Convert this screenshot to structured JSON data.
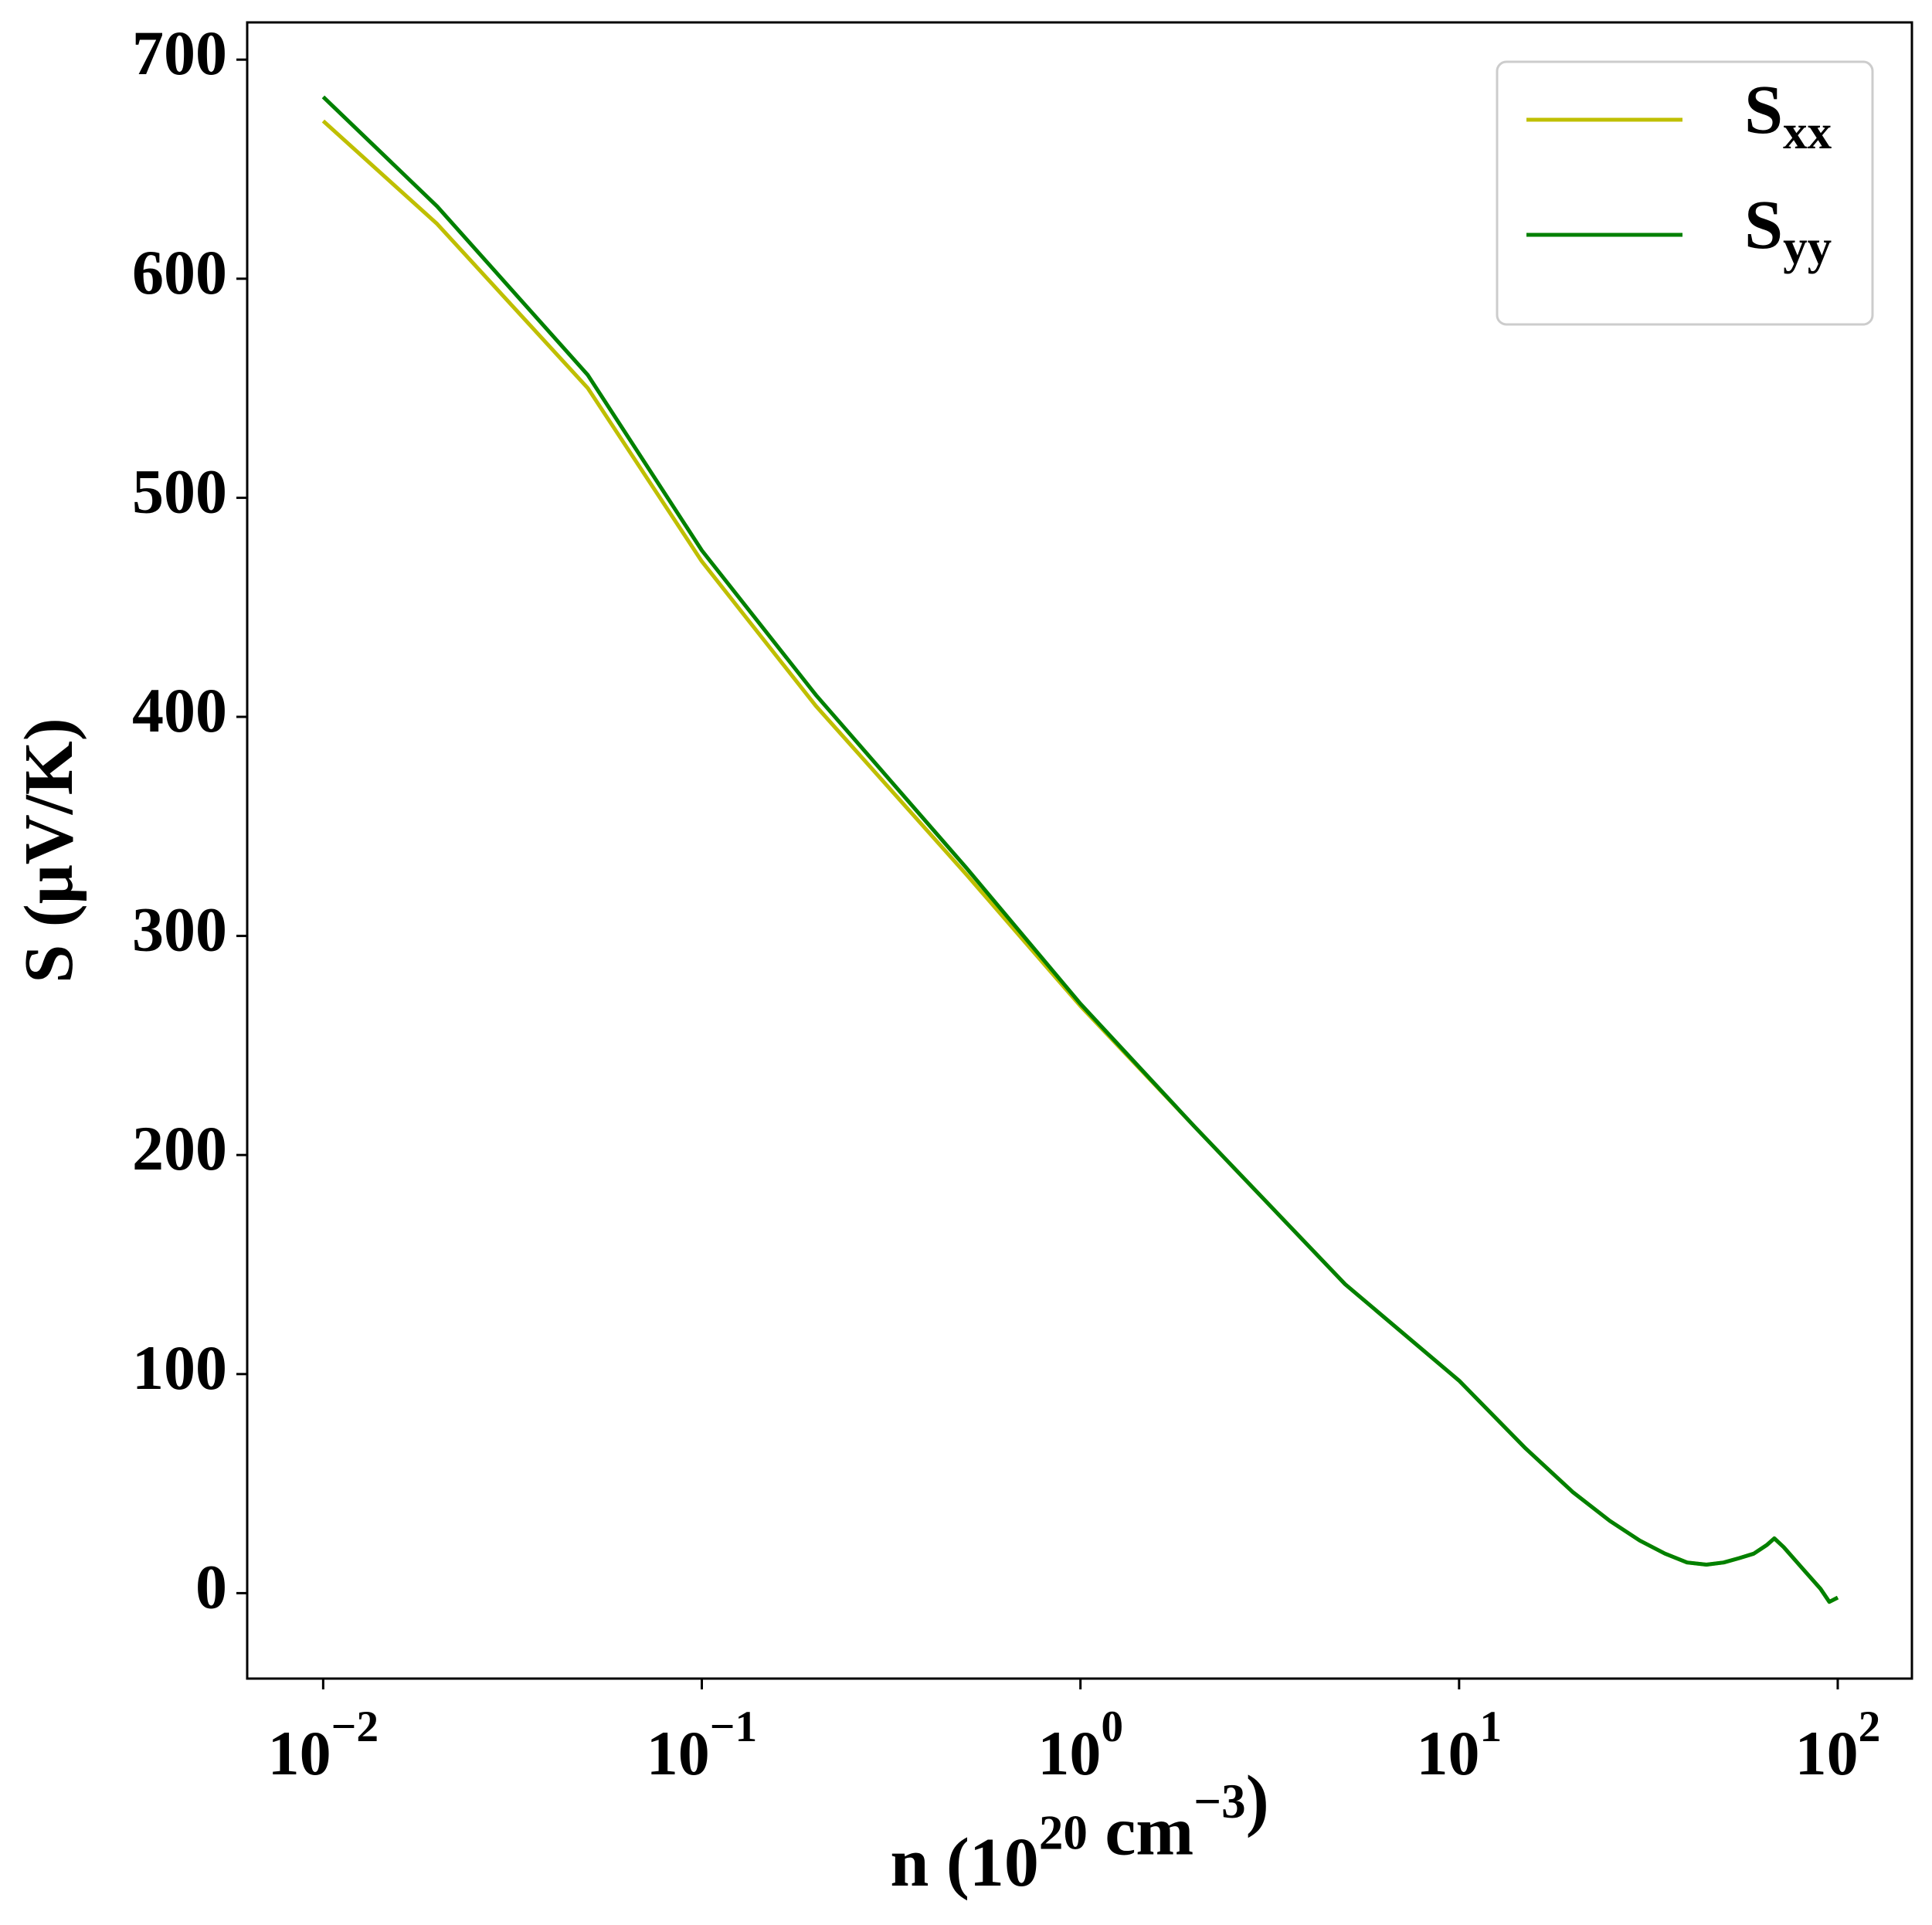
{
  "chart_data": {
    "type": "line",
    "x_label": "n (10^{20} cm^{−3})",
    "y_label": "S (μV/K)",
    "xscale": "log",
    "xlim": [
      0.0063,
      157
    ],
    "ylim": [
      -39,
      717
    ],
    "xticks": [
      {
        "value": 0.01,
        "label": "10^{−2}"
      },
      {
        "value": 0.1,
        "label": "10^{−1}"
      },
      {
        "value": 1,
        "label": "10^{0}"
      },
      {
        "value": 10,
        "label": "10^{1}"
      },
      {
        "value": 100,
        "label": "10^{2}"
      }
    ],
    "yticks": [
      0,
      100,
      200,
      300,
      400,
      500,
      600,
      700
    ],
    "grid": false,
    "legend": "upper right",
    "x": [
      0.01,
      0.02,
      0.05,
      0.1,
      0.2,
      0.5,
      1,
      2,
      5,
      10,
      15,
      20,
      25,
      30,
      35,
      40,
      45,
      50,
      55,
      60,
      65,
      68,
      72,
      80,
      90,
      95,
      100
    ],
    "series": [
      {
        "name": "S_{xx}",
        "color": "#bfbf00",
        "values": [
          672,
          625,
          550,
          471,
          405,
          328,
          268,
          213,
          141,
          97,
          66,
          46,
          33,
          24,
          18,
          14,
          13,
          14,
          16,
          18,
          22,
          25,
          21,
          12,
          2,
          -4,
          -2
        ]
      },
      {
        "name": "S_{yy}",
        "color": "#008000",
        "values": [
          683,
          633,
          556,
          476,
          410,
          331,
          269,
          213,
          141,
          97,
          66,
          46,
          33,
          24,
          18,
          14,
          13,
          14,
          16,
          18,
          22,
          25,
          21,
          12,
          2,
          -4,
          -2
        ]
      }
    ]
  }
}
